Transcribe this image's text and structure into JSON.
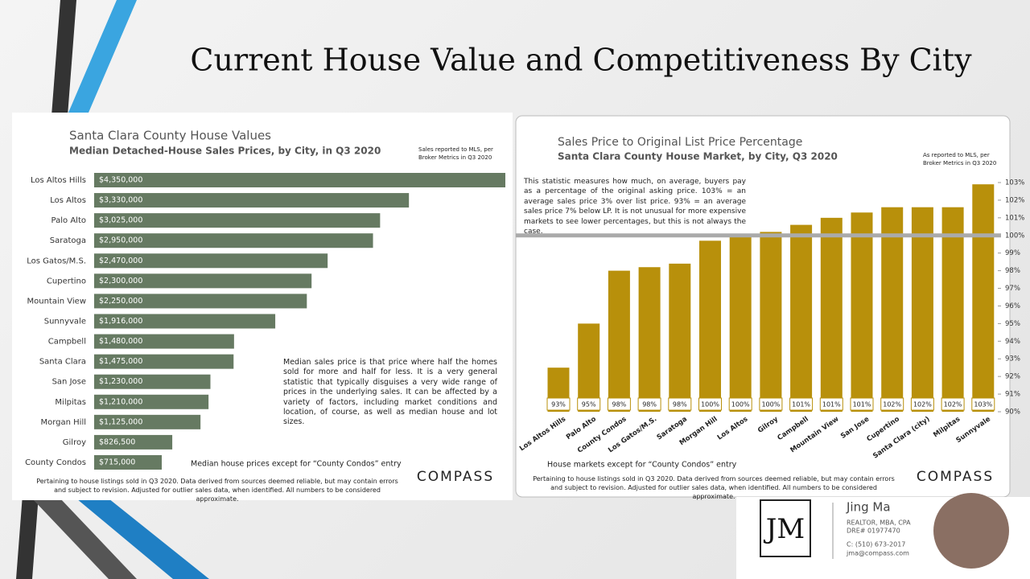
{
  "slide_title": "Current House Value and Competitiveness By City",
  "chart_data": [
    {
      "type": "barh",
      "title": "Santa Clara County House Values",
      "subtitle": "Median Detached-House Sales Prices, by City, in Q3 2020",
      "source_note": "Sales reported to MLS, per Broker Metrics in Q3 2020",
      "annotation": "Median sales price is that price where half the homes sold for more and half for less. It is a very general statistic that typically disguises a very wide range of prices in the underlying sales. It can be affected by a variety of factors, including market conditions and location, of course, as well as median house and lot sizes.",
      "axis_note": "Median house prices except for “County Condos” entry",
      "footer": "Pertaining to house listings sold in Q3 2020. Data derived from sources deemed reliable, but may contain errors and subject to revision. Adjusted for outlier sales data, when identified. All numbers to be considered approximate.",
      "logo": "COMPASS",
      "categories": [
        "Los Altos Hills",
        "Los Altos",
        "Palo Alto",
        "Saratoga",
        "Los Gatos/M.S.",
        "Cupertino",
        "Mountain View",
        "Sunnyvale",
        "Campbell",
        "Santa Clara",
        "San Jose",
        "Milpitas",
        "Morgan Hill",
        "Gilroy",
        "County Condos"
      ],
      "values": [
        4350000,
        3330000,
        3025000,
        2950000,
        2470000,
        2300000,
        2250000,
        1916000,
        1480000,
        1475000,
        1230000,
        1210000,
        1125000,
        826500,
        715000
      ],
      "value_labels": [
        "$4,350,000",
        "$3,330,000",
        "$3,025,000",
        "$2,950,000",
        "$2,470,000",
        "$2,300,000",
        "$2,250,000",
        "$1,916,000",
        "$1,480,000",
        "$1,475,000",
        "$1,230,000",
        "$1,210,000",
        "$1,125,000",
        "$826,500",
        "$715,000"
      ],
      "xlim": [
        0,
        4350000
      ],
      "color": "#667a62"
    },
    {
      "type": "bar",
      "title": "Sales Price to Original List Price Percentage",
      "subtitle": "Santa Clara County House Market, by City, Q3 2020",
      "source_note": "As reported to MLS, per Broker Metrics in Q3 2020",
      "annotation": "This statistic measures how much, on average, buyers pay as a percentage of the original asking price. 103% = an average sales price 3% over list price. 93% = an average sales price 7% below LP. It is not unusual for more expensive markets to see lower percentages, but this is not always the case.",
      "axis_note": "House markets except for “County Condos” entry",
      "footer": "Pertaining to house listings sold in Q3 2020. Data derived from sources deemed reliable, but may contain errors and subject to revision. Adjusted for outlier sales data, when identified. All numbers to be considered approximate.",
      "logo": "COMPASS",
      "categories": [
        "Los Altos Hills",
        "Palo Alto",
        "County Condos",
        "Los Gatos/M.S.",
        "Saratoga",
        "Morgan Hill",
        "Los Altos",
        "Gilroy",
        "Campbell",
        "Mountain View",
        "San Jose",
        "Cupertino",
        "Santa Clara (city)",
        "Milpitas",
        "Sunnyvale"
      ],
      "values": [
        92.5,
        95.0,
        98.0,
        98.2,
        98.4,
        99.7,
        99.9,
        100.2,
        100.6,
        101.0,
        101.3,
        101.6,
        101.6,
        101.6,
        102.9
      ],
      "value_labels": [
        "93%",
        "95%",
        "98%",
        "98%",
        "98%",
        "100%",
        "100%",
        "100%",
        "101%",
        "101%",
        "101%",
        "102%",
        "102%",
        "102%",
        "103%"
      ],
      "ylim": [
        90,
        103
      ],
      "yticks": [
        {
          "value": 90,
          "label": "90%"
        },
        {
          "value": 91,
          "label": "91%"
        },
        {
          "value": 92,
          "label": "92%"
        },
        {
          "value": 93,
          "label": "93%"
        },
        {
          "value": 94,
          "label": "94%"
        },
        {
          "value": 95,
          "label": "95%"
        },
        {
          "value": 96,
          "label": "96%"
        },
        {
          "value": 97,
          "label": "97%"
        },
        {
          "value": 98,
          "label": "98%"
        },
        {
          "value": 99,
          "label": "99%"
        },
        {
          "value": 100,
          "label": "100%"
        },
        {
          "value": 101,
          "label": "101%"
        },
        {
          "value": 102,
          "label": "102%"
        },
        {
          "value": 103,
          "label": "103%"
        }
      ],
      "reference_line": 100,
      "color": "#b8900b"
    }
  ],
  "agent": {
    "name": "Jing Ma",
    "credentials": "REALTOR, MBA, CPA",
    "license": "DRE# 01977470",
    "phone": "C: (510) 673-2017",
    "email": "jma@compass.com",
    "logo": "JM"
  }
}
